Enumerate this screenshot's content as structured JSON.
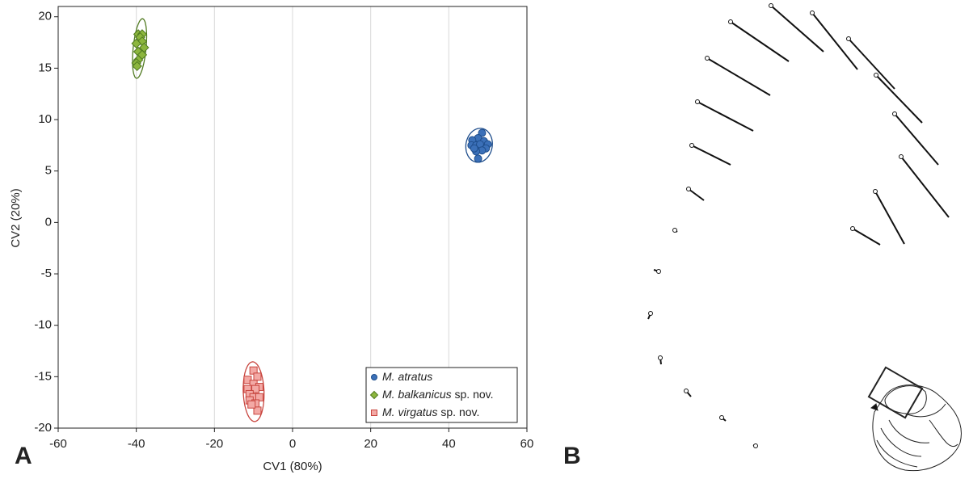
{
  "panel_labels": {
    "a": "A",
    "b": "B"
  },
  "chart_data": {
    "type": "scatter",
    "xlabel": "CV1 (80%)",
    "ylabel": "CV2 (20%)",
    "xlim": [
      -60,
      60
    ],
    "xticks": [
      -60,
      -40,
      -20,
      0,
      20,
      40,
      60
    ],
    "ylim": [
      -20,
      21
    ],
    "yticks": [
      -20,
      -15,
      -10,
      -5,
      0,
      5,
      10,
      15,
      20
    ],
    "xgrid": true,
    "ygrid": false,
    "legend": "lower right",
    "series": [
      {
        "name": "M. atratus",
        "marker": "circle",
        "color": "#3b70b8",
        "edge": "#1f4e8c",
        "x": [
          48.5,
          47.5,
          46,
          49,
          50,
          45.8,
          47,
          48,
          49.5,
          48.5,
          47,
          47.5,
          46.5
        ],
        "y": [
          8.7,
          8.2,
          8,
          7.9,
          7.6,
          7.5,
          7.5,
          7.6,
          7.2,
          7,
          6.9,
          6.2,
          7.2
        ]
      },
      {
        "name": "M. balkanicus sp. nov.",
        "marker": "diamond",
        "color": "#8cb63e",
        "edge": "#507a20",
        "x": [
          -39.5,
          -38.5,
          -39,
          -38.5,
          -40,
          -38,
          -39.5,
          -38.5,
          -39.5,
          -40,
          -39.8
        ],
        "y": [
          18.3,
          18.3,
          18,
          17.6,
          17.4,
          17,
          16.6,
          16.3,
          15.8,
          15.5,
          15.2
        ]
      },
      {
        "name": "M. virgatus sp. nov.",
        "marker": "square",
        "color": "#f3a9a5",
        "edge": "#c8453e",
        "x": [
          -10,
          -9,
          -11.5,
          -10,
          -8.5,
          -11.5,
          -9.5,
          -11,
          -10,
          -8.5,
          -11,
          -9.5,
          -9,
          -10.5
        ],
        "y": [
          -14.4,
          -15,
          -15.3,
          -15.7,
          -16,
          -16.2,
          -16.2,
          -16.7,
          -17,
          -17,
          -17.3,
          -17.6,
          -18.3,
          -17.7
        ]
      }
    ]
  }
}
